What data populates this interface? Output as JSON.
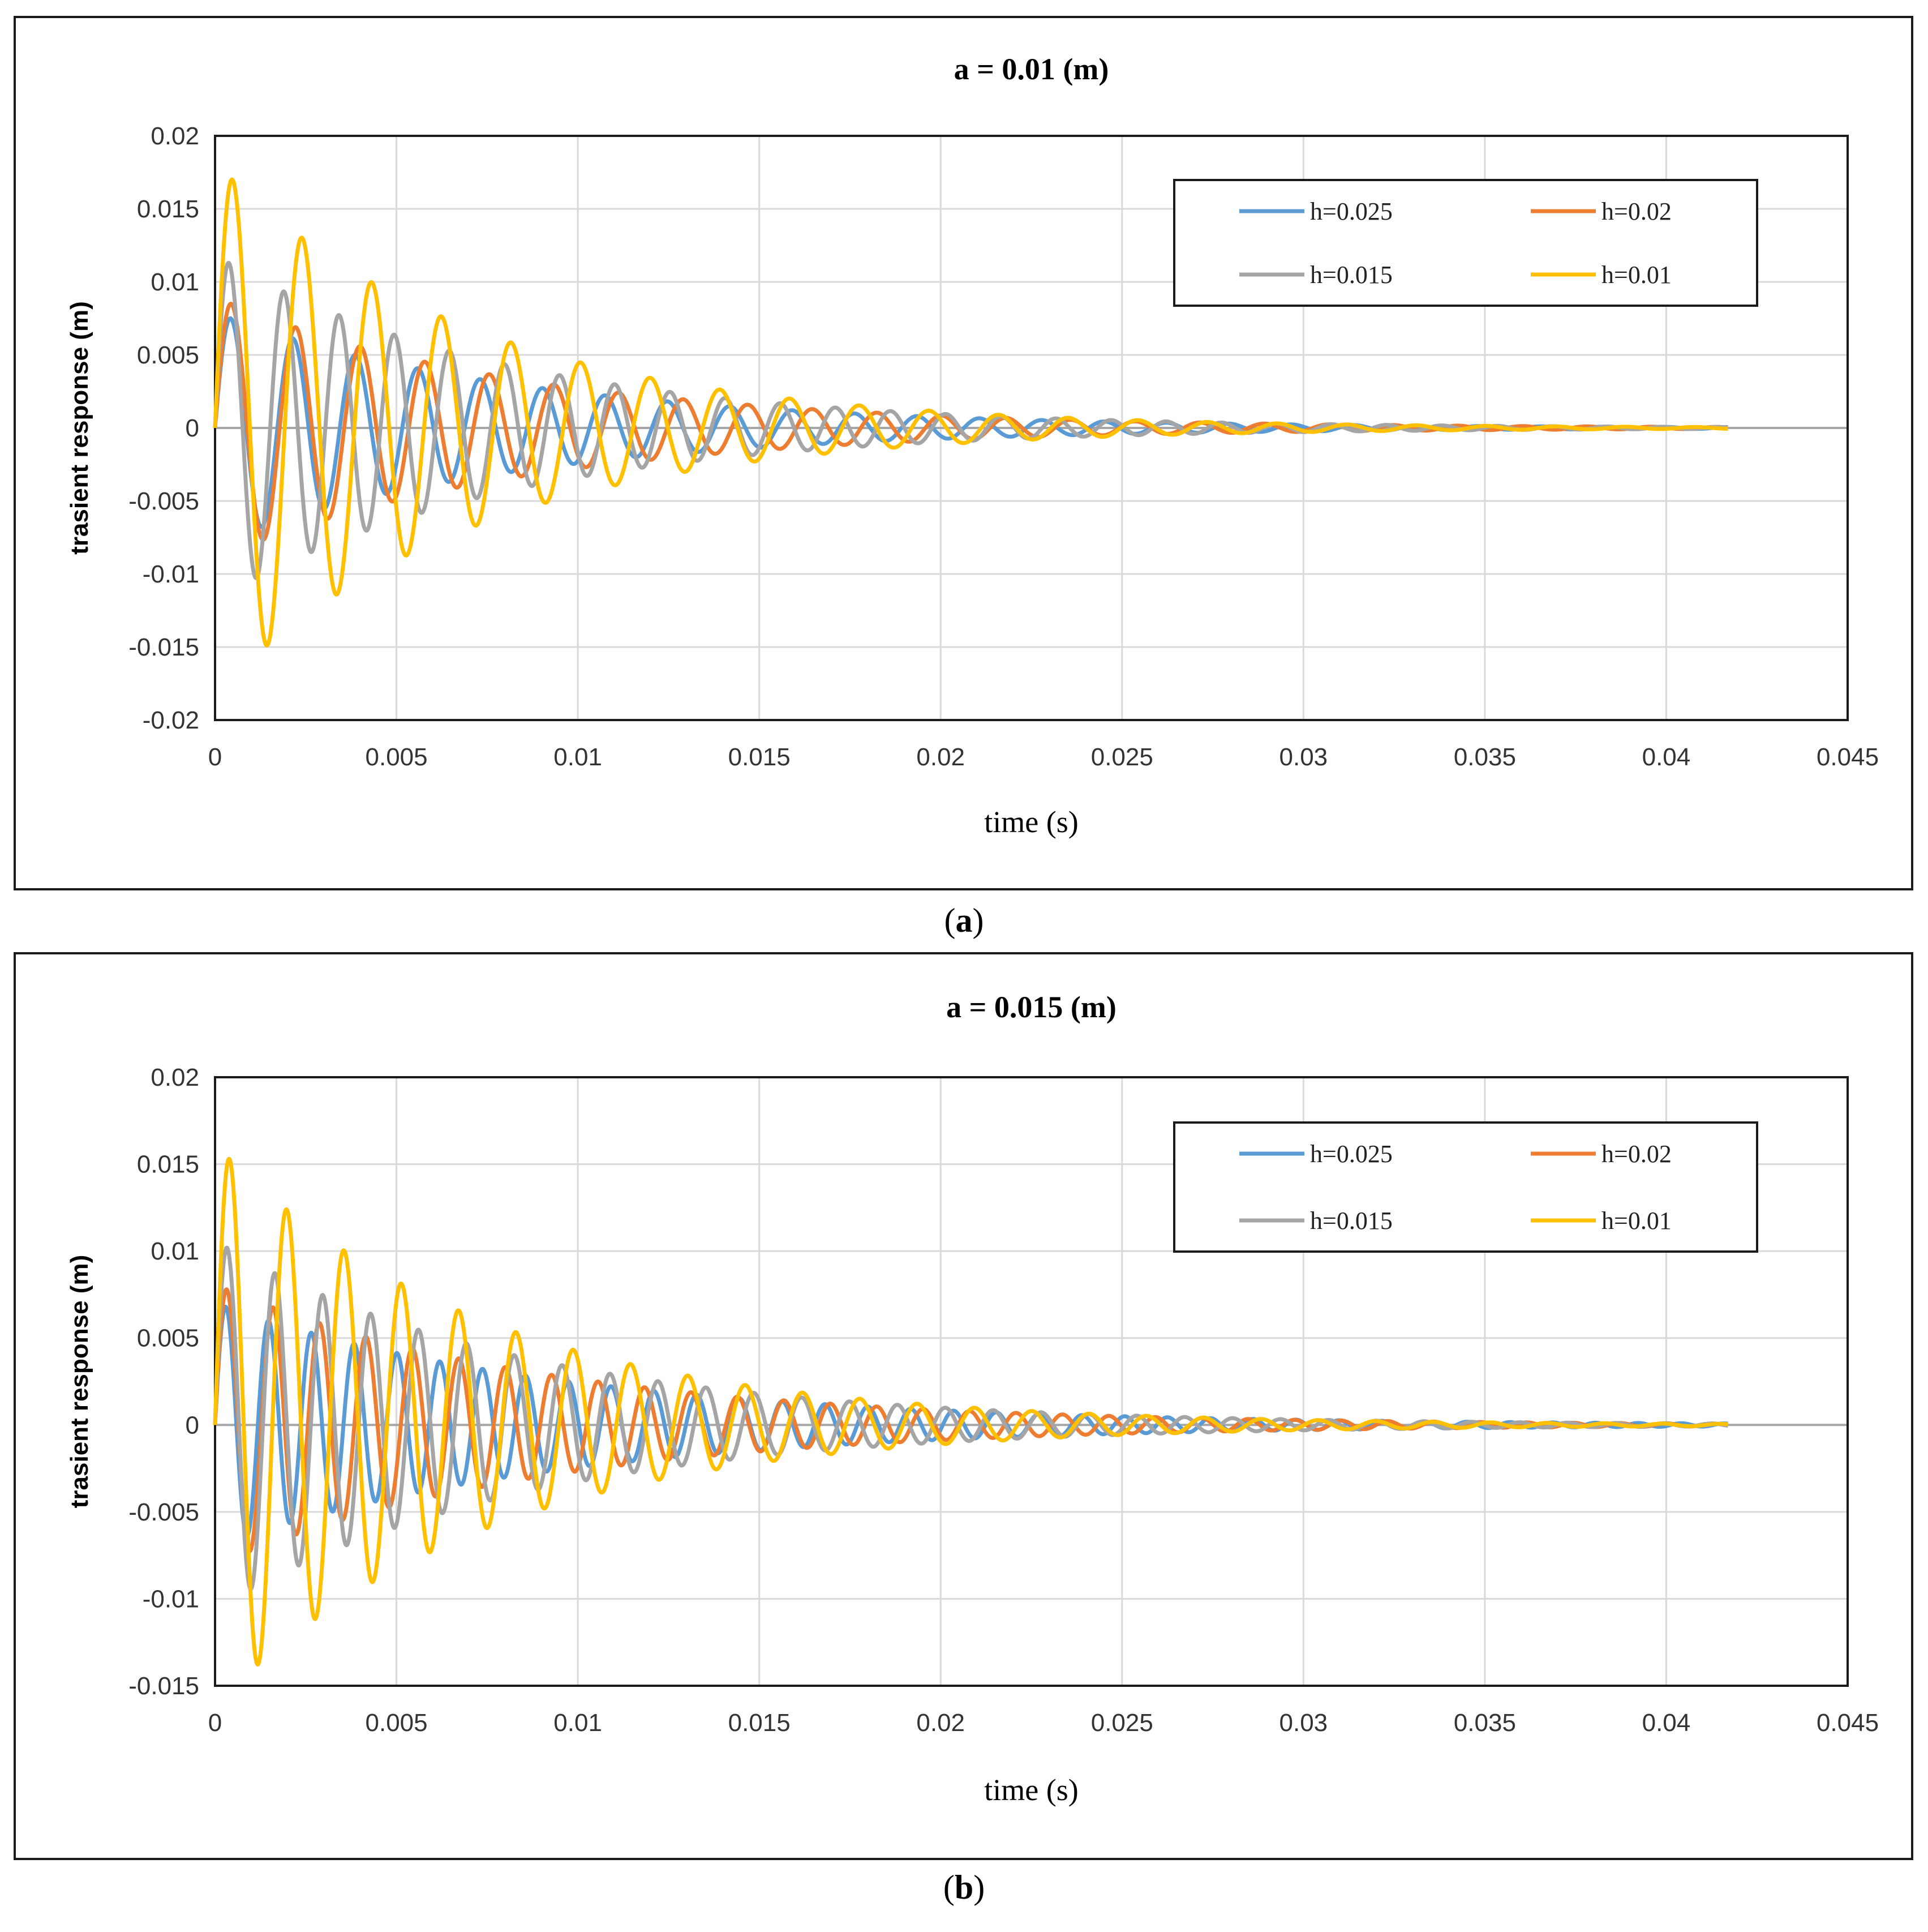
{
  "chart_data": [
    {
      "type": "line",
      "panel_label": "a",
      "title": "a = 0.01 (m)",
      "xlabel": "time (s)",
      "ylabel": "trasient response (m)",
      "xlim": [
        0,
        0.045
      ],
      "ylim": [
        -0.02,
        0.02
      ],
      "xticks": [
        0,
        0.005,
        0.01,
        0.015,
        0.02,
        0.025,
        0.03,
        0.035,
        0.04,
        0.045
      ],
      "xtick_labels": [
        "0",
        "0.005",
        "0.01",
        "0.015",
        "0.02",
        "0.025",
        "0.03",
        "0.035",
        "0.04",
        "0.045"
      ],
      "yticks": [
        0.02,
        0.015,
        0.01,
        0.005,
        0,
        -0.005,
        -0.01,
        -0.015,
        -0.02
      ],
      "ytick_labels": [
        "0.02",
        "0.015",
        "0.01",
        "0.005",
        "0",
        "-0.005",
        "-0.01",
        "-0.015",
        "-0.02"
      ],
      "grid": true,
      "legend_position": "top-right",
      "data_t_end": 0.0417,
      "series": [
        {
          "name": "h=0.025",
          "color": "#5b9bd5",
          "first_peak": 0.0075,
          "period": 0.00172,
          "decay_tau": 0.0085
        },
        {
          "name": "h=0.02",
          "color": "#ed7d31",
          "first_peak": 0.0085,
          "period": 0.00178,
          "decay_tau": 0.0085
        },
        {
          "name": "h=0.015",
          "color": "#a5a5a5",
          "first_peak": 0.0113,
          "period": 0.00152,
          "decay_tau": 0.008
        },
        {
          "name": "h=0.01",
          "color": "#ffc000",
          "first_peak": 0.017,
          "period": 0.00192,
          "decay_tau": 0.0072
        }
      ]
    },
    {
      "type": "line",
      "panel_label": "b",
      "title": "a = 0.015 (m)",
      "xlabel": "time (s)",
      "ylabel": "trasient response (m)",
      "xlim": [
        0,
        0.045
      ],
      "ylim": [
        -0.015,
        0.02
      ],
      "xticks": [
        0,
        0.005,
        0.01,
        0.015,
        0.02,
        0.025,
        0.03,
        0.035,
        0.04,
        0.045
      ],
      "xtick_labels": [
        "0",
        "0.005",
        "0.01",
        "0.015",
        "0.02",
        "0.025",
        "0.03",
        "0.035",
        "0.04",
        "0.045"
      ],
      "yticks": [
        0.02,
        0.015,
        0.01,
        0.005,
        0,
        -0.005,
        -0.01,
        -0.015
      ],
      "ytick_labels": [
        "0.02",
        "0.015",
        "0.01",
        "0.005",
        "0",
        "-0.005",
        "-0.01",
        "-0.015"
      ],
      "grid": true,
      "legend_position": "top-right",
      "data_t_end": 0.0417,
      "series": [
        {
          "name": "h=0.025",
          "color": "#5b9bd5",
          "first_peak": 0.0068,
          "period": 0.00118,
          "decay_tau": 0.0095
        },
        {
          "name": "h=0.02",
          "color": "#ed7d31",
          "first_peak": 0.0078,
          "period": 0.00128,
          "decay_tau": 0.009
        },
        {
          "name": "h=0.015",
          "color": "#a5a5a5",
          "first_peak": 0.0102,
          "period": 0.00132,
          "decay_tau": 0.0085
        },
        {
          "name": "h=0.01",
          "color": "#ffc000",
          "first_peak": 0.0153,
          "period": 0.00158,
          "decay_tau": 0.0075
        }
      ]
    }
  ]
}
